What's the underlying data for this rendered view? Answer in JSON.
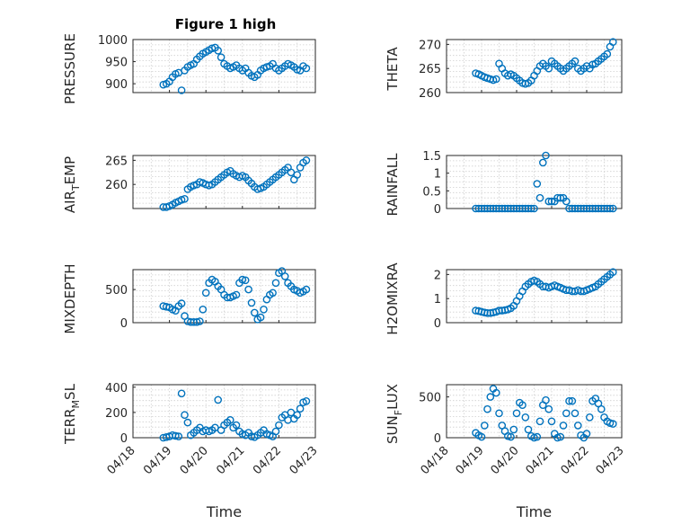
{
  "figure": {
    "title": "Figure 1 high",
    "marker_color": "#0072bd"
  },
  "chart_data": [
    {
      "type": "scatter",
      "title": "Figure 1 high",
      "ylabel": "PRESSURE",
      "xlabel": "",
      "ylim": [
        880,
        1000
      ],
      "yticks": [
        900,
        950,
        1000
      ],
      "ytick_labels": [
        "900",
        "950",
        "1000"
      ],
      "xlim": [
        "04/18",
        "04/23"
      ],
      "x": [
        "04/18 20:00",
        "04/18 22:00",
        "04/19 00:00",
        "04/19 02:00",
        "04/19 04:00",
        "04/19 06:00",
        "04/19 08:00",
        "04/19 10:00",
        "04/19 12:00",
        "04/19 14:00",
        "04/19 16:00",
        "04/19 18:00",
        "04/19 20:00",
        "04/19 22:00",
        "04/20 00:00",
        "04/20 02:00",
        "04/20 04:00",
        "04/20 06:00",
        "04/20 08:00",
        "04/20 10:00",
        "04/20 12:00",
        "04/20 14:00",
        "04/20 16:00",
        "04/20 18:00",
        "04/20 20:00",
        "04/20 22:00",
        "04/21 00:00",
        "04/21 02:00",
        "04/21 04:00",
        "04/21 06:00",
        "04/21 08:00",
        "04/21 10:00",
        "04/21 12:00",
        "04/21 14:00",
        "04/21 16:00",
        "04/21 18:00",
        "04/21 20:00",
        "04/21 22:00",
        "04/22 00:00",
        "04/22 02:00",
        "04/22 04:00",
        "04/22 06:00",
        "04/22 08:00",
        "04/22 10:00",
        "04/22 12:00",
        "04/22 14:00",
        "04/22 16:00",
        "04/22 18:00"
      ],
      "y": [
        898,
        900,
        905,
        915,
        922,
        925,
        885,
        930,
        938,
        942,
        945,
        955,
        962,
        968,
        972,
        976,
        980,
        982,
        975,
        960,
        945,
        940,
        935,
        938,
        942,
        935,
        930,
        935,
        925,
        918,
        915,
        920,
        930,
        935,
        938,
        940,
        945,
        935,
        930,
        935,
        940,
        945,
        942,
        938,
        932,
        930,
        940,
        935
      ]
    },
    {
      "type": "scatter",
      "title": "",
      "ylabel": "THETA",
      "xlabel": "",
      "ylim": [
        260,
        271
      ],
      "yticks": [
        260,
        265,
        270
      ],
      "ytick_labels": [
        "260",
        "265",
        "270"
      ],
      "xlim": [
        "04/18",
        "04/23"
      ],
      "x": [
        "04/18 20:00",
        "04/18 22:00",
        "04/19 00:00",
        "04/19 02:00",
        "04/19 04:00",
        "04/19 06:00",
        "04/19 08:00",
        "04/19 10:00",
        "04/19 12:00",
        "04/19 14:00",
        "04/19 16:00",
        "04/19 18:00",
        "04/19 20:00",
        "04/19 22:00",
        "04/20 00:00",
        "04/20 02:00",
        "04/20 04:00",
        "04/20 06:00",
        "04/20 08:00",
        "04/20 10:00",
        "04/20 12:00",
        "04/20 14:00",
        "04/20 16:00",
        "04/20 18:00",
        "04/20 20:00",
        "04/20 22:00",
        "04/21 00:00",
        "04/21 02:00",
        "04/21 04:00",
        "04/21 06:00",
        "04/21 08:00",
        "04/21 10:00",
        "04/21 12:00",
        "04/21 14:00",
        "04/21 16:00",
        "04/21 18:00",
        "04/21 20:00",
        "04/21 22:00",
        "04/22 00:00",
        "04/22 02:00",
        "04/22 04:00",
        "04/22 06:00",
        "04/22 08:00",
        "04/22 10:00",
        "04/22 12:00",
        "04/22 14:00",
        "04/22 16:00",
        "04/22 18:00"
      ],
      "y": [
        264,
        263.8,
        263.5,
        263.2,
        263,
        262.8,
        262.6,
        262.8,
        266,
        265,
        264,
        263.5,
        263.8,
        263.5,
        263,
        262.5,
        262,
        261.8,
        262,
        262.5,
        263.5,
        264.5,
        265.5,
        266,
        265.5,
        265,
        266.5,
        266,
        265.5,
        265,
        264.5,
        265,
        265.5,
        266,
        266.5,
        265,
        264.5,
        265,
        265.5,
        265,
        265.8,
        266,
        266.5,
        267,
        267.5,
        268,
        269.5,
        270.5
      ]
    },
    {
      "type": "scatter",
      "title": "",
      "ylabel": "AIR_TEMP",
      "xlabel": "",
      "ylim": [
        255,
        266
      ],
      "yticks": [
        260,
        265
      ],
      "ytick_labels": [
        "260",
        "265"
      ],
      "xlim": [
        "04/18",
        "04/23"
      ],
      "x": [
        "04/18 20:00",
        "04/18 22:00",
        "04/19 00:00",
        "04/19 02:00",
        "04/19 04:00",
        "04/19 06:00",
        "04/19 08:00",
        "04/19 10:00",
        "04/19 12:00",
        "04/19 14:00",
        "04/19 16:00",
        "04/19 18:00",
        "04/19 20:00",
        "04/19 22:00",
        "04/20 00:00",
        "04/20 02:00",
        "04/20 04:00",
        "04/20 06:00",
        "04/20 08:00",
        "04/20 10:00",
        "04/20 12:00",
        "04/20 14:00",
        "04/20 16:00",
        "04/20 18:00",
        "04/20 20:00",
        "04/20 22:00",
        "04/21 00:00",
        "04/21 02:00",
        "04/21 04:00",
        "04/21 06:00",
        "04/21 08:00",
        "04/21 10:00",
        "04/21 12:00",
        "04/21 14:00",
        "04/21 16:00",
        "04/21 18:00",
        "04/21 20:00",
        "04/21 22:00",
        "04/22 00:00",
        "04/22 02:00",
        "04/22 04:00",
        "04/22 06:00",
        "04/22 08:00",
        "04/22 10:00",
        "04/22 12:00",
        "04/22 14:00",
        "04/22 16:00",
        "04/22 18:00"
      ],
      "y": [
        255.3,
        255.3,
        255.5,
        255.8,
        256.2,
        256.5,
        256.8,
        257,
        259,
        259.5,
        259.8,
        260,
        260.5,
        260.3,
        260,
        259.8,
        260,
        260.5,
        261,
        261.5,
        262,
        262.5,
        262.8,
        262.2,
        261.8,
        261.5,
        261.8,
        261.5,
        260.8,
        260.2,
        259.5,
        259,
        259.2,
        259.5,
        260,
        260.5,
        261,
        261.5,
        262,
        262.5,
        263,
        263.5,
        262.5,
        261,
        262,
        263.5,
        264.5,
        265
      ]
    },
    {
      "type": "scatter",
      "title": "",
      "ylabel": "RAINFALL",
      "xlabel": "",
      "ylim": [
        0,
        1.5
      ],
      "yticks": [
        0,
        0.5,
        1,
        1.5
      ],
      "ytick_labels": [
        "0",
        "0.5",
        "1",
        "1.5"
      ],
      "xlim": [
        "04/18",
        "04/23"
      ],
      "x": [
        "04/18 20:00",
        "04/18 22:00",
        "04/19 00:00",
        "04/19 02:00",
        "04/19 04:00",
        "04/19 06:00",
        "04/19 08:00",
        "04/19 10:00",
        "04/19 12:00",
        "04/19 14:00",
        "04/19 16:00",
        "04/19 18:00",
        "04/19 20:00",
        "04/19 22:00",
        "04/20 00:00",
        "04/20 02:00",
        "04/20 04:00",
        "04/20 06:00",
        "04/20 08:00",
        "04/20 10:00",
        "04/20 12:00",
        "04/20 14:00",
        "04/20 16:00",
        "04/20 18:00",
        "04/20 20:00",
        "04/20 22:00",
        "04/21 00:00",
        "04/21 02:00",
        "04/21 04:00",
        "04/21 06:00",
        "04/21 08:00",
        "04/21 10:00",
        "04/21 12:00",
        "04/21 14:00",
        "04/21 16:00",
        "04/21 18:00",
        "04/21 20:00",
        "04/21 22:00",
        "04/22 00:00",
        "04/22 02:00",
        "04/22 04:00",
        "04/22 06:00",
        "04/22 08:00",
        "04/22 10:00",
        "04/22 12:00",
        "04/22 14:00",
        "04/22 16:00",
        "04/22 18:00"
      ],
      "y": [
        0,
        0,
        0,
        0,
        0,
        0,
        0,
        0,
        0,
        0,
        0,
        0,
        0,
        0,
        0,
        0,
        0,
        0,
        0,
        0,
        0,
        0.7,
        0.3,
        1.3,
        1.5,
        0.2,
        0.2,
        0.2,
        0.3,
        0.3,
        0.3,
        0.2,
        0,
        0,
        0,
        0,
        0,
        0,
        0,
        0,
        0,
        0,
        0,
        0,
        0,
        0,
        0,
        0
      ]
    },
    {
      "type": "scatter",
      "title": "",
      "ylabel": "MIXDEPTH",
      "xlabel": "",
      "ylim": [
        0,
        800
      ],
      "yticks": [
        0,
        500
      ],
      "ytick_labels": [
        "0",
        "500"
      ],
      "xlim": [
        "04/18",
        "04/23"
      ],
      "x": [
        "04/18 20:00",
        "04/18 22:00",
        "04/19 00:00",
        "04/19 02:00",
        "04/19 04:00",
        "04/19 06:00",
        "04/19 08:00",
        "04/19 10:00",
        "04/19 12:00",
        "04/19 14:00",
        "04/19 16:00",
        "04/19 18:00",
        "04/19 20:00",
        "04/19 22:00",
        "04/20 00:00",
        "04/20 02:00",
        "04/20 04:00",
        "04/20 06:00",
        "04/20 08:00",
        "04/20 10:00",
        "04/20 12:00",
        "04/20 14:00",
        "04/20 16:00",
        "04/20 18:00",
        "04/20 20:00",
        "04/20 22:00",
        "04/21 00:00",
        "04/21 02:00",
        "04/21 04:00",
        "04/21 06:00",
        "04/21 08:00",
        "04/21 10:00",
        "04/21 12:00",
        "04/21 14:00",
        "04/21 16:00",
        "04/21 18:00",
        "04/21 20:00",
        "04/21 22:00",
        "04/22 00:00",
        "04/22 02:00",
        "04/22 04:00",
        "04/22 06:00",
        "04/22 08:00",
        "04/22 10:00",
        "04/22 12:00",
        "04/22 14:00",
        "04/22 16:00",
        "04/22 18:00"
      ],
      "y": [
        250,
        240,
        230,
        200,
        180,
        250,
        290,
        100,
        20,
        10,
        10,
        10,
        20,
        200,
        450,
        600,
        650,
        620,
        550,
        500,
        420,
        380,
        380,
        400,
        420,
        600,
        650,
        640,
        500,
        300,
        150,
        50,
        80,
        200,
        350,
        420,
        450,
        600,
        750,
        780,
        700,
        600,
        550,
        500,
        480,
        450,
        470,
        500
      ]
    },
    {
      "type": "scatter",
      "title": "",
      "ylabel": "H2OMIXRA",
      "xlabel": "",
      "ylim": [
        0,
        2.2
      ],
      "yticks": [
        0,
        1,
        2
      ],
      "ytick_labels": [
        "0",
        "1",
        "2"
      ],
      "xlim": [
        "04/18",
        "04/23"
      ],
      "x": [
        "04/18 20:00",
        "04/18 22:00",
        "04/19 00:00",
        "04/19 02:00",
        "04/19 04:00",
        "04/19 06:00",
        "04/19 08:00",
        "04/19 10:00",
        "04/19 12:00",
        "04/19 14:00",
        "04/19 16:00",
        "04/19 18:00",
        "04/19 20:00",
        "04/19 22:00",
        "04/20 00:00",
        "04/20 02:00",
        "04/20 04:00",
        "04/20 06:00",
        "04/20 08:00",
        "04/20 10:00",
        "04/20 12:00",
        "04/20 14:00",
        "04/20 16:00",
        "04/20 18:00",
        "04/20 20:00",
        "04/20 22:00",
        "04/21 00:00",
        "04/21 02:00",
        "04/21 04:00",
        "04/21 06:00",
        "04/21 08:00",
        "04/21 10:00",
        "04/21 12:00",
        "04/21 14:00",
        "04/21 16:00",
        "04/21 18:00",
        "04/21 20:00",
        "04/21 22:00",
        "04/22 00:00",
        "04/22 02:00",
        "04/22 04:00",
        "04/22 06:00",
        "04/22 08:00",
        "04/22 10:00",
        "04/22 12:00",
        "04/22 14:00",
        "04/22 16:00",
        "04/22 18:00"
      ],
      "y": [
        0.5,
        0.48,
        0.45,
        0.42,
        0.4,
        0.4,
        0.42,
        0.45,
        0.5,
        0.5,
        0.52,
        0.55,
        0.6,
        0.7,
        0.9,
        1.1,
        1.3,
        1.5,
        1.6,
        1.7,
        1.75,
        1.7,
        1.6,
        1.5,
        1.5,
        1.45,
        1.5,
        1.55,
        1.5,
        1.45,
        1.4,
        1.35,
        1.35,
        1.3,
        1.3,
        1.35,
        1.3,
        1.3,
        1.35,
        1.4,
        1.45,
        1.5,
        1.6,
        1.7,
        1.8,
        1.9,
        2.0,
        2.1
      ]
    },
    {
      "type": "scatter",
      "title": "",
      "ylabel": "TERR_MSL",
      "xlabel": "Time",
      "ylim": [
        0,
        420
      ],
      "yticks": [
        0,
        200,
        400
      ],
      "ytick_labels": [
        "0",
        "200",
        "400"
      ],
      "xlim": [
        "04/18",
        "04/23"
      ],
      "xticks": [
        "04/18",
        "04/19",
        "04/20",
        "04/21",
        "04/22",
        "04/23"
      ],
      "x": [
        "04/18 20:00",
        "04/18 22:00",
        "04/19 00:00",
        "04/19 02:00",
        "04/19 04:00",
        "04/19 06:00",
        "04/19 08:00",
        "04/19 10:00",
        "04/19 12:00",
        "04/19 14:00",
        "04/19 16:00",
        "04/19 18:00",
        "04/19 20:00",
        "04/19 22:00",
        "04/20 00:00",
        "04/20 02:00",
        "04/20 04:00",
        "04/20 06:00",
        "04/20 08:00",
        "04/20 10:00",
        "04/20 12:00",
        "04/20 14:00",
        "04/20 16:00",
        "04/20 18:00",
        "04/20 20:00",
        "04/20 22:00",
        "04/21 00:00",
        "04/21 02:00",
        "04/21 04:00",
        "04/21 06:00",
        "04/21 08:00",
        "04/21 10:00",
        "04/21 12:00",
        "04/21 14:00",
        "04/21 16:00",
        "04/21 18:00",
        "04/21 20:00",
        "04/21 22:00",
        "04/22 00:00",
        "04/22 02:00",
        "04/22 04:00",
        "04/22 06:00",
        "04/22 08:00",
        "04/22 10:00",
        "04/22 12:00",
        "04/22 14:00",
        "04/22 16:00",
        "04/22 18:00"
      ],
      "y": [
        0,
        5,
        10,
        20,
        15,
        10,
        350,
        180,
        120,
        20,
        40,
        60,
        80,
        50,
        60,
        50,
        60,
        80,
        300,
        60,
        100,
        120,
        140,
        80,
        100,
        50,
        30,
        20,
        40,
        10,
        5,
        20,
        40,
        60,
        30,
        20,
        10,
        50,
        100,
        160,
        180,
        140,
        200,
        150,
        180,
        230,
        280,
        290
      ]
    },
    {
      "type": "scatter",
      "title": "",
      "ylabel": "SUN_FLUX",
      "xlabel": "Time",
      "ylim": [
        0,
        650
      ],
      "yticks": [
        0,
        500
      ],
      "ytick_labels": [
        "0",
        "500"
      ],
      "xlim": [
        "04/18",
        "04/23"
      ],
      "xticks": [
        "04/18",
        "04/19",
        "04/20",
        "04/21",
        "04/22",
        "04/23"
      ],
      "x": [
        "04/18 20:00",
        "04/18 22:00",
        "04/19 00:00",
        "04/19 02:00",
        "04/19 04:00",
        "04/19 06:00",
        "04/19 08:00",
        "04/19 10:00",
        "04/19 12:00",
        "04/19 14:00",
        "04/19 16:00",
        "04/19 18:00",
        "04/19 20:00",
        "04/19 22:00",
        "04/20 00:00",
        "04/20 02:00",
        "04/20 04:00",
        "04/20 06:00",
        "04/20 08:00",
        "04/20 10:00",
        "04/20 12:00",
        "04/20 14:00",
        "04/20 16:00",
        "04/20 18:00",
        "04/20 20:00",
        "04/20 22:00",
        "04/21 00:00",
        "04/21 02:00",
        "04/21 04:00",
        "04/21 06:00",
        "04/21 08:00",
        "04/21 10:00",
        "04/21 12:00",
        "04/21 14:00",
        "04/21 16:00",
        "04/21 18:00",
        "04/21 20:00",
        "04/21 22:00",
        "04/22 00:00",
        "04/22 02:00",
        "04/22 04:00",
        "04/22 06:00",
        "04/22 08:00",
        "04/22 10:00",
        "04/22 12:00",
        "04/22 14:00",
        "04/22 16:00",
        "04/22 18:00"
      ],
      "y": [
        60,
        30,
        10,
        150,
        350,
        500,
        600,
        550,
        300,
        150,
        80,
        20,
        10,
        100,
        300,
        430,
        400,
        250,
        100,
        20,
        0,
        10,
        200,
        400,
        460,
        350,
        200,
        50,
        0,
        10,
        150,
        300,
        450,
        450,
        300,
        150,
        30,
        0,
        50,
        250,
        450,
        480,
        420,
        350,
        250,
        200,
        180,
        170
      ]
    }
  ]
}
